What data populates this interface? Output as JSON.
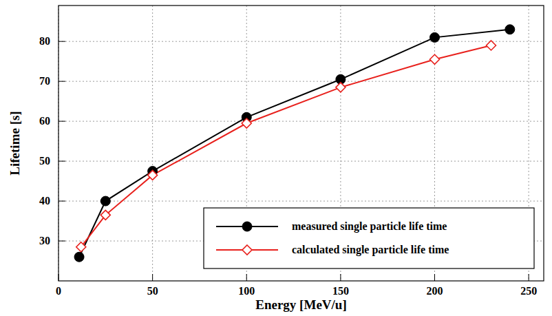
{
  "chart_data": {
    "type": "line",
    "x_label": "Energy [MeV/u]",
    "y_label": "Lifetime [s]",
    "xlim": [
      0,
      258
    ],
    "ylim": [
      20,
      89
    ],
    "xticks": [
      0,
      50,
      100,
      150,
      200,
      250
    ],
    "yticks": [
      30,
      40,
      50,
      60,
      70,
      80
    ],
    "grid": true,
    "legend": "lower right",
    "series": [
      {
        "name": "measured single particle life time",
        "color": "#000000",
        "marker": "circle",
        "line_style": "solid",
        "x": [
          11,
          25,
          50,
          100,
          150,
          200,
          240
        ],
        "values": [
          26,
          40,
          47.5,
          61,
          70.5,
          81,
          83
        ]
      },
      {
        "name": "calculated single particle life time",
        "color": "#e8201c",
        "marker": "diamond",
        "line_style": "solid",
        "x": [
          12,
          25,
          50,
          100,
          150,
          200,
          230
        ],
        "values": [
          28.5,
          36.5,
          46.5,
          59.5,
          68.5,
          75.5,
          79
        ]
      }
    ]
  }
}
